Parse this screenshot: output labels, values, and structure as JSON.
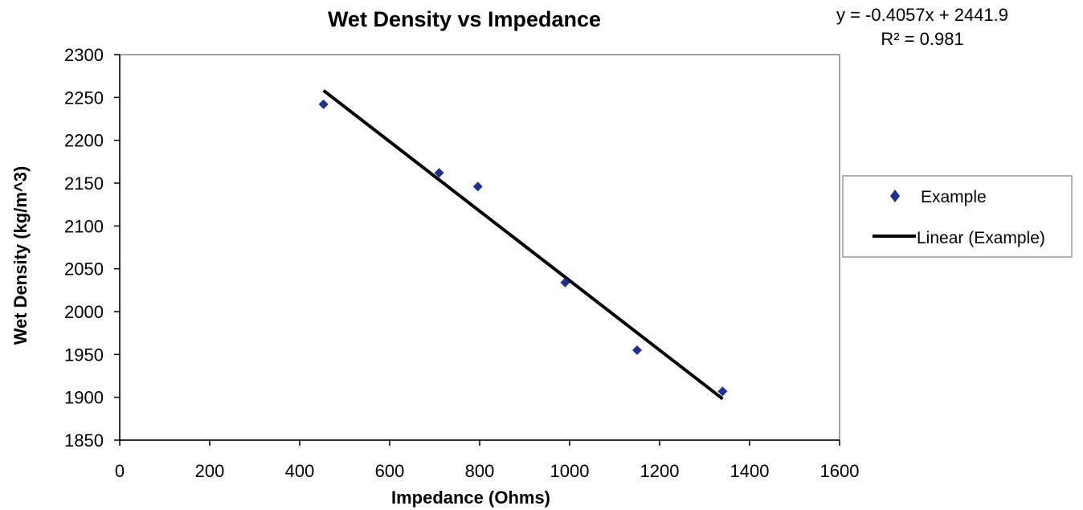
{
  "chart_data": {
    "type": "scatter",
    "title": "Wet Density  vs Impedance",
    "xlabel": "Impedance (Ohms)",
    "ylabel": "Wet Density (kg/m^3)",
    "xlim": [
      0,
      1600
    ],
    "ylim": [
      1850,
      2300
    ],
    "x_ticks": [
      "0",
      "200",
      "400",
      "600",
      "800",
      "1000",
      "1200",
      "1400",
      "1600"
    ],
    "y_ticks": [
      "1850",
      "1900",
      "1950",
      "2000",
      "2050",
      "2100",
      "2150",
      "2200",
      "2250",
      "2300"
    ],
    "grid": false,
    "legend_position": "right",
    "series": [
      {
        "name": "Example",
        "marker": "diamond",
        "color": "#1f2f8f",
        "x": [
          453,
          710,
          796,
          990,
          1150,
          1340
        ],
        "y": [
          2242,
          2162,
          2146,
          2034,
          1955,
          1907
        ]
      }
    ],
    "trendline": {
      "name": "Linear (Example)",
      "color": "#000000",
      "slope": -0.4057,
      "intercept": 2441.9,
      "x_range": [
        453,
        1340
      ]
    },
    "annotations": {
      "equation": "y = -0.4057x + 2441.9",
      "r_squared": "R² = 0.981"
    }
  }
}
